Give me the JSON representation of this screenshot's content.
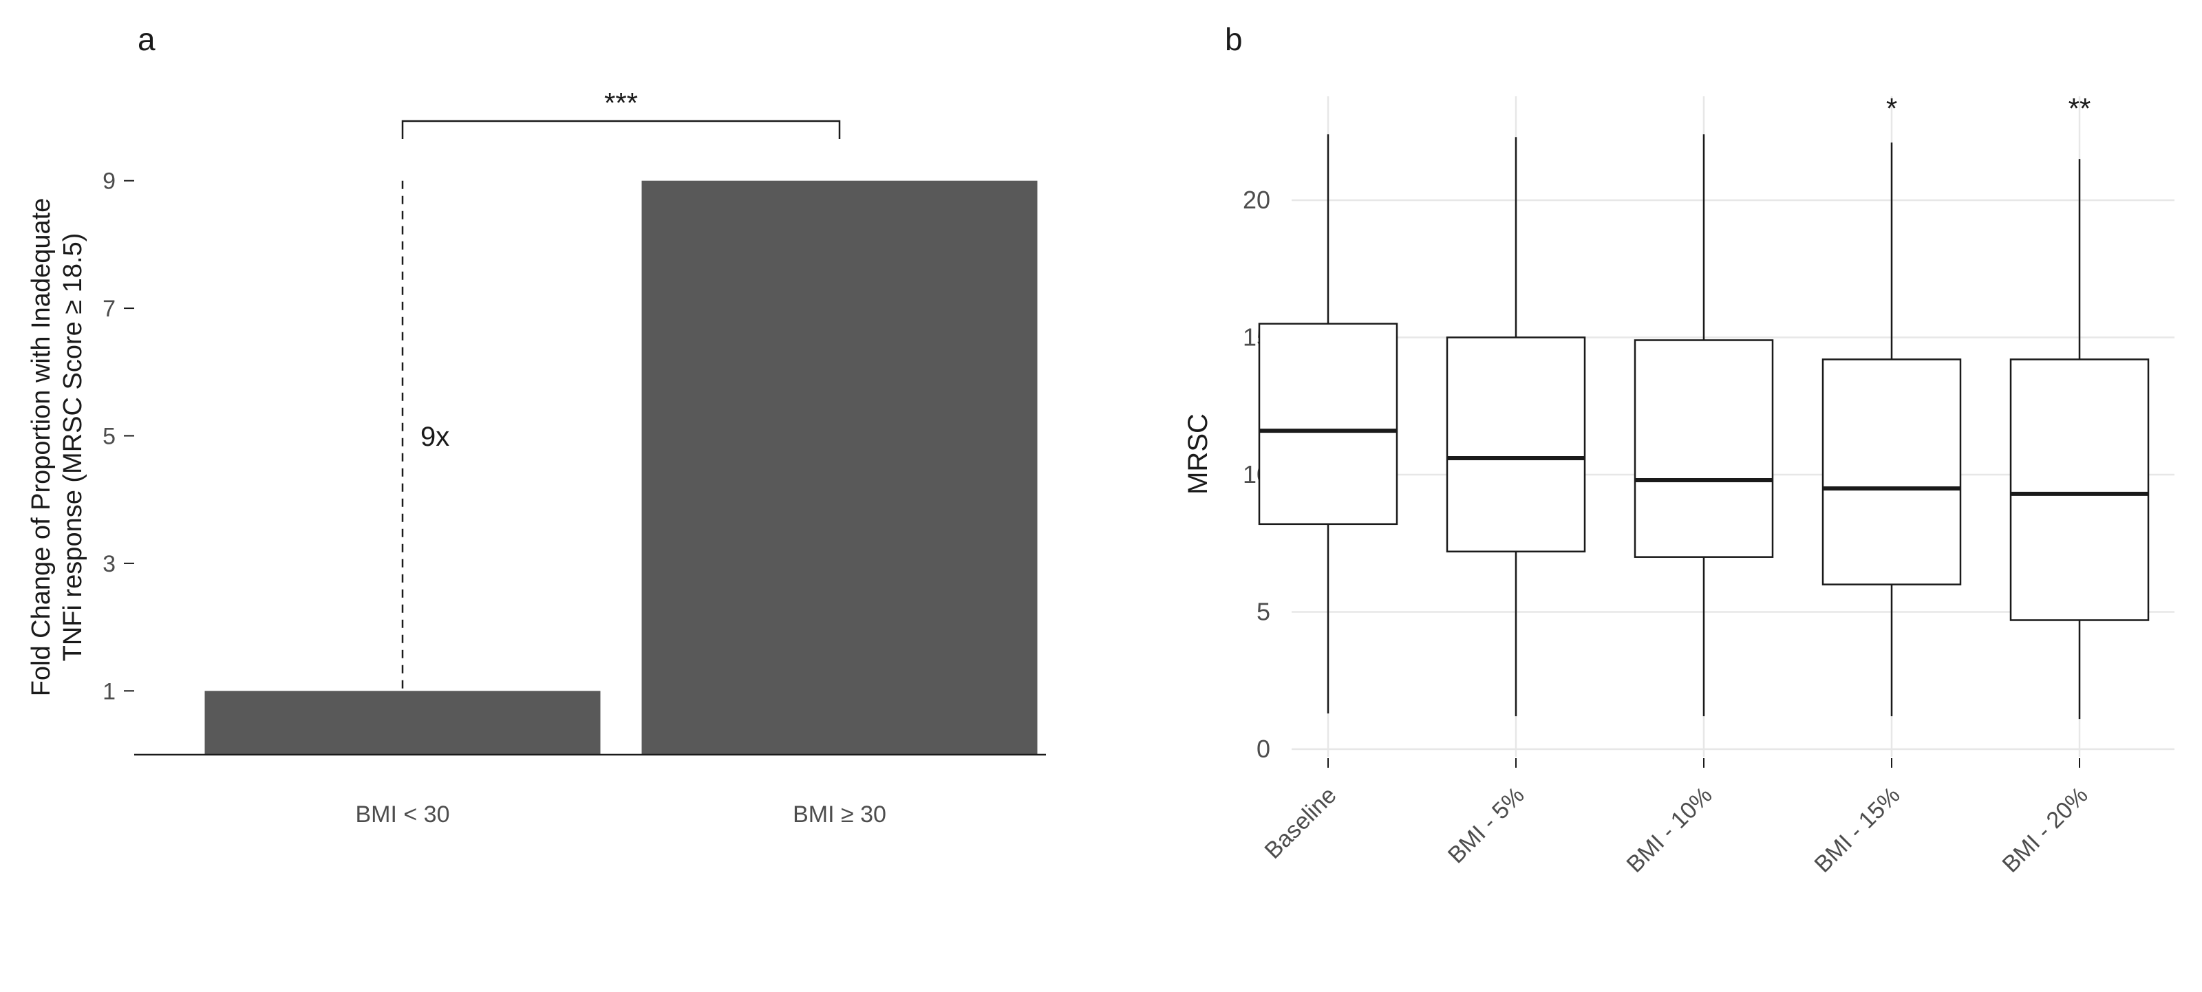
{
  "style": {
    "background": "#ffffff",
    "ink": "#1a1a1a",
    "axis_text": "#4d4d4d",
    "grid": "#e7e7e7",
    "bar_color": "#595959",
    "box_fill": "#ffffff"
  },
  "figure": {
    "panels": [
      {
        "label": "a",
        "chart_index": 0
      },
      {
        "label": "b",
        "chart_index": 1
      }
    ]
  },
  "chart_data": [
    {
      "type": "bar",
      "title": "",
      "categories": [
        "BMI < 30",
        "BMI ≥ 30"
      ],
      "values": [
        1,
        9
      ],
      "xlabel": "",
      "ylabel": "Fold Change of Proportion with Inadequate\nTNFi response (MRSC Score ≥ 18.5)",
      "yticks": [
        1,
        3,
        5,
        7,
        9
      ],
      "ylim": [
        0,
        10.5
      ],
      "grid": false,
      "annotations": {
        "fold_label": "9x",
        "significance": "***",
        "dashed_line": {
          "category_index": 0,
          "from": 1,
          "to": 9
        }
      }
    },
    {
      "type": "box",
      "title": "",
      "categories": [
        "Baseline",
        "BMI - 5%",
        "BMI - 10%",
        "BMI - 15%",
        "BMI - 20%"
      ],
      "xlabel": "",
      "ylabel": "MRSC",
      "yticks": [
        0,
        5,
        10,
        15,
        20
      ],
      "ylim": [
        0,
        23.5
      ],
      "grid": true,
      "boxes": [
        {
          "category": "Baseline",
          "whisker_low": 1.3,
          "q1": 8.2,
          "median": 11.6,
          "q3": 15.5,
          "whisker_high": 22.4,
          "significance": ""
        },
        {
          "category": "BMI - 5%",
          "whisker_low": 1.2,
          "q1": 7.2,
          "median": 10.6,
          "q3": 15.0,
          "whisker_high": 22.3,
          "significance": ""
        },
        {
          "category": "BMI - 10%",
          "whisker_low": 1.2,
          "q1": 7.0,
          "median": 9.8,
          "q3": 14.9,
          "whisker_high": 22.4,
          "significance": ""
        },
        {
          "category": "BMI - 15%",
          "whisker_low": 1.2,
          "q1": 6.0,
          "median": 9.5,
          "q3": 14.2,
          "whisker_high": 22.1,
          "significance": "*"
        },
        {
          "category": "BMI - 20%",
          "whisker_low": 1.1,
          "q1": 4.7,
          "median": 9.3,
          "q3": 14.2,
          "whisker_high": 21.5,
          "significance": "**"
        }
      ]
    }
  ]
}
